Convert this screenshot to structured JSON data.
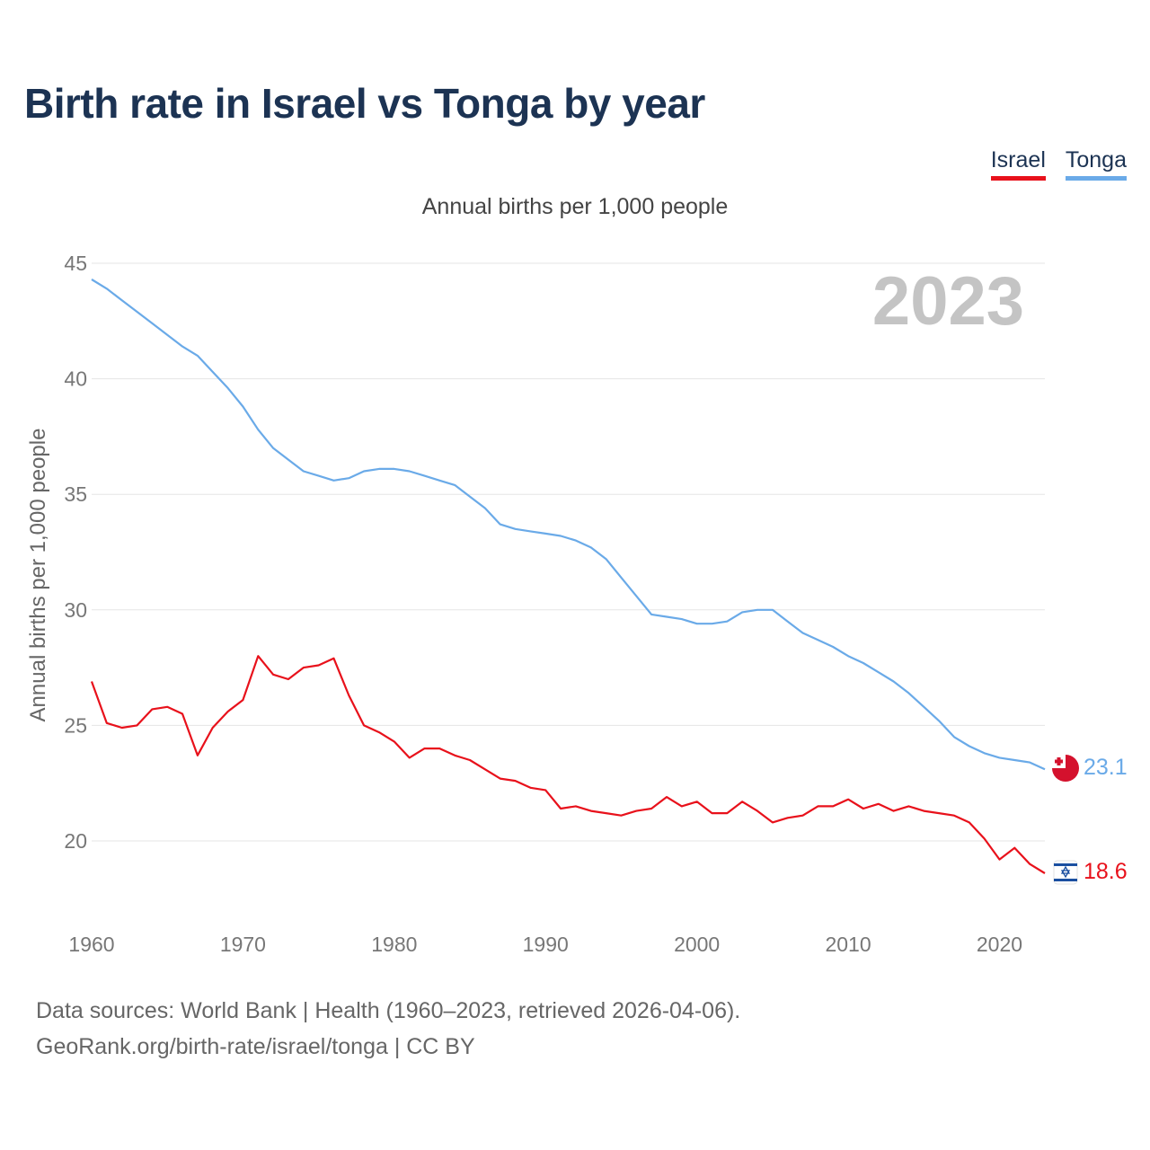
{
  "title": "Birth rate in Israel vs Tonga by year",
  "legend": {
    "israel": "Israel",
    "tonga": "Tonga"
  },
  "subtitle": "Annual births per 1,000 people",
  "footer": {
    "line1": "Data sources: World Bank | Health (1960–2023, retrieved 2026-04-06).",
    "line2": "GeoRank.org/birth-rate/israel/tonga | CC BY"
  },
  "colors": {
    "israel": "#e8111b",
    "tonga": "#6aaae8",
    "title": "#1c3353",
    "grid": "#e5e5e5"
  },
  "chart_data": {
    "type": "line",
    "title": "Birth rate in Israel vs Tonga by year",
    "xlabel": "",
    "ylabel": "Annual births per 1,000 people",
    "current_year": "2023",
    "xlim": [
      1960,
      2023
    ],
    "ylim": [
      17,
      45
    ],
    "yticks": [
      20,
      25,
      30,
      35,
      40,
      45
    ],
    "xticks": [
      1960,
      1970,
      1980,
      1990,
      2000,
      2010,
      2020
    ],
    "x": [
      1960,
      1961,
      1962,
      1963,
      1964,
      1965,
      1966,
      1967,
      1968,
      1969,
      1970,
      1971,
      1972,
      1973,
      1974,
      1975,
      1976,
      1977,
      1978,
      1979,
      1980,
      1981,
      1982,
      1983,
      1984,
      1985,
      1986,
      1987,
      1988,
      1989,
      1990,
      1991,
      1992,
      1993,
      1994,
      1995,
      1996,
      1997,
      1998,
      1999,
      2000,
      2001,
      2002,
      2003,
      2004,
      2005,
      2006,
      2007,
      2008,
      2009,
      2010,
      2011,
      2012,
      2013,
      2014,
      2015,
      2016,
      2017,
      2018,
      2019,
      2020,
      2021,
      2022,
      2023
    ],
    "series": [
      {
        "name": "Israel",
        "color": "#e8111b",
        "end_label": "18.6",
        "values": [
          26.9,
          25.1,
          24.9,
          25.0,
          25.7,
          25.8,
          25.5,
          23.7,
          24.9,
          25.6,
          26.1,
          28.0,
          27.2,
          27.0,
          27.5,
          27.6,
          27.9,
          26.3,
          25.0,
          24.7,
          24.3,
          23.6,
          24.0,
          24.0,
          23.7,
          23.5,
          23.1,
          22.7,
          22.6,
          22.3,
          22.2,
          21.4,
          21.5,
          21.3,
          21.2,
          21.1,
          21.3,
          21.4,
          21.9,
          21.5,
          21.7,
          21.2,
          21.2,
          21.7,
          21.3,
          20.8,
          21.0,
          21.1,
          21.5,
          21.5,
          21.8,
          21.4,
          21.6,
          21.3,
          21.5,
          21.3,
          21.2,
          21.1,
          20.8,
          20.1,
          19.2,
          19.7,
          19.0,
          18.6
        ]
      },
      {
        "name": "Tonga",
        "color": "#6aaae8",
        "end_label": "23.1",
        "values": [
          44.3,
          43.9,
          43.4,
          42.9,
          42.4,
          41.9,
          41.4,
          41.0,
          40.3,
          39.6,
          38.8,
          37.8,
          37.0,
          36.5,
          36.0,
          35.8,
          35.6,
          35.7,
          36.0,
          36.1,
          36.1,
          36.0,
          35.8,
          35.6,
          35.4,
          34.9,
          34.4,
          33.7,
          33.5,
          33.4,
          33.3,
          33.2,
          33.0,
          32.7,
          32.2,
          31.4,
          30.6,
          29.8,
          29.7,
          29.6,
          29.4,
          29.4,
          29.5,
          29.9,
          30.0,
          30.0,
          29.5,
          29.0,
          28.7,
          28.4,
          28.0,
          27.7,
          27.3,
          26.9,
          26.4,
          25.8,
          25.2,
          24.5,
          24.1,
          23.8,
          23.6,
          23.5,
          23.4,
          23.1
        ]
      }
    ]
  }
}
